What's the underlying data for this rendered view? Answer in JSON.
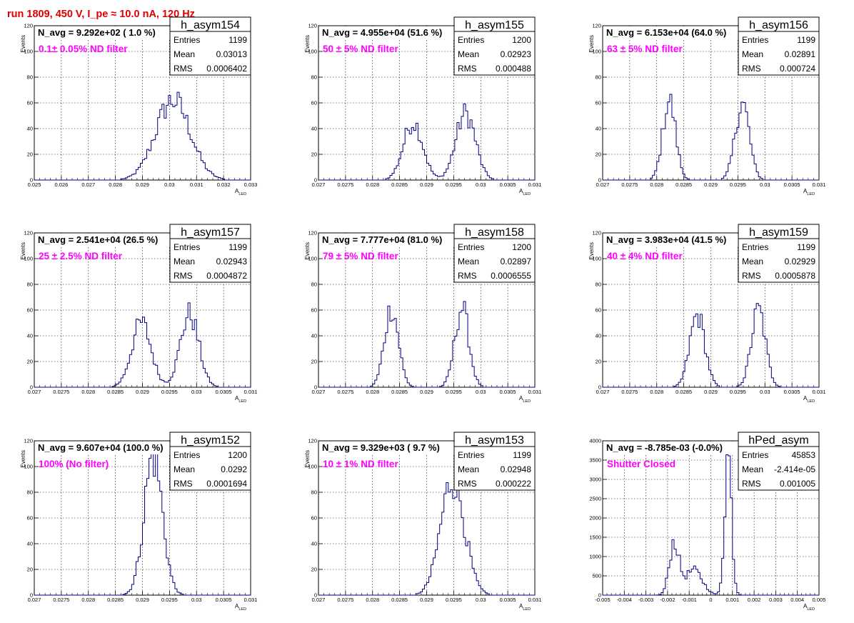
{
  "page": {
    "title": "run 1809,   450 V, I_pe ≈ 10.0 nA, 120 Hz",
    "colors": {
      "histogram": "#000080",
      "title": "#e00000",
      "annotation": "#ff00ff",
      "grid": "#000000"
    }
  },
  "chart_data": [
    {
      "type": "histogram",
      "name": "h_asym154",
      "navg": "N_avg = 9.292e+02 ( 1.0 %)",
      "filter": "0.1± 0.05% ND filter",
      "stats": [
        {
          "label": "Entries",
          "value": "1199"
        },
        {
          "label": "Mean",
          "value": "0.03013"
        },
        {
          "label": "RMS",
          "value": "0.0006402"
        }
      ],
      "xlabel": "A",
      "xlabel_sub": "LED",
      "ylabel": "Events",
      "xlim": [
        0.025,
        0.033
      ],
      "ylim": [
        0,
        120
      ],
      "xticks": [
        "0.025",
        "0.026",
        "0.027",
        "0.028",
        "0.029",
        "0.03",
        "0.031",
        "0.032",
        "0.033"
      ],
      "yticks": [
        "0",
        "20",
        "40",
        "60",
        "80",
        "100",
        "120"
      ],
      "peaks": [
        {
          "mean": 0.03013,
          "sigma": 0.00064,
          "height": 62
        }
      ]
    },
    {
      "type": "histogram",
      "name": "h_asym155",
      "navg": "N_avg = 4.955e+04 (51.6 %)",
      "filter": "50 ± 5% ND filter",
      "stats": [
        {
          "label": "Entries",
          "value": "1200"
        },
        {
          "label": "Mean",
          "value": "0.02923"
        },
        {
          "label": "RMS",
          "value": "0.000488"
        }
      ],
      "xlabel": "A",
      "xlabel_sub": "LED",
      "ylabel": "Events",
      "xlim": [
        0.027,
        0.031
      ],
      "ylim": [
        0,
        120
      ],
      "xticks": [
        "0.027",
        "0.0275",
        "0.028",
        "0.0285",
        "0.029",
        "0.0295",
        "0.03",
        "0.0305",
        "0.031"
      ],
      "yticks": [
        "0",
        "20",
        "40",
        "60",
        "80",
        "100",
        "120"
      ],
      "peaks": [
        {
          "mean": 0.02875,
          "sigma": 0.00018,
          "height": 45
        },
        {
          "mean": 0.02972,
          "sigma": 0.00018,
          "height": 52
        }
      ]
    },
    {
      "type": "histogram",
      "name": "h_asym156",
      "navg": "N_avg = 6.153e+04 (64.0 %)",
      "filter": "63 ± 5% ND filter",
      "stats": [
        {
          "label": "Entries",
          "value": "1199"
        },
        {
          "label": "Mean",
          "value": "0.02891"
        },
        {
          "label": "RMS",
          "value": "0.000724"
        }
      ],
      "xlabel": "A",
      "xlabel_sub": "LED",
      "ylabel": "Events",
      "xlim": [
        0.027,
        0.031
      ],
      "ylim": [
        0,
        120
      ],
      "xticks": [
        "0.027",
        "0.0275",
        "0.028",
        "0.0285",
        "0.029",
        "0.0295",
        "0.03",
        "0.0305",
        "0.031"
      ],
      "yticks": [
        "0",
        "20",
        "40",
        "60",
        "80",
        "100",
        "120"
      ],
      "peaks": [
        {
          "mean": 0.02823,
          "sigma": 0.00012,
          "height": 62
        },
        {
          "mean": 0.02958,
          "sigma": 0.00013,
          "height": 60
        }
      ]
    },
    {
      "type": "histogram",
      "name": "h_asym157",
      "navg": "N_avg = 2.541e+04 (26.5 %)",
      "filter": "25 ± 2.5% ND filter",
      "stats": [
        {
          "label": "Entries",
          "value": "1199"
        },
        {
          "label": "Mean",
          "value": "0.02943"
        },
        {
          "label": "RMS",
          "value": "0.0004872"
        }
      ],
      "xlabel": "A",
      "xlabel_sub": "LED",
      "ylabel": "Events",
      "xlim": [
        0.027,
        0.031
      ],
      "ylim": [
        0,
        120
      ],
      "xticks": [
        "0.027",
        "0.0275",
        "0.028",
        "0.0285",
        "0.029",
        "0.0295",
        "0.03",
        "0.0305",
        "0.031"
      ],
      "yticks": [
        "0",
        "20",
        "40",
        "60",
        "80",
        "100",
        "120"
      ],
      "peaks": [
        {
          "mean": 0.02898,
          "sigma": 0.00018,
          "height": 50
        },
        {
          "mean": 0.02987,
          "sigma": 0.00017,
          "height": 57
        }
      ]
    },
    {
      "type": "histogram",
      "name": "h_asym158",
      "navg": "N_avg = 7.777e+04 (81.0 %)",
      "filter": "79 ± 5% ND filter",
      "stats": [
        {
          "label": "Entries",
          "value": "1200"
        },
        {
          "label": "Mean",
          "value": "0.02897"
        },
        {
          "label": "RMS",
          "value": "0.0006555"
        }
      ],
      "xlabel": "A",
      "xlabel_sub": "LED",
      "ylabel": "Events",
      "xlim": [
        0.027,
        0.031
      ],
      "ylim": [
        0,
        120
      ],
      "xticks": [
        "0.027",
        "0.0275",
        "0.028",
        "0.0285",
        "0.029",
        "0.0295",
        "0.03",
        "0.0305",
        "0.031"
      ],
      "yticks": [
        "0",
        "20",
        "40",
        "60",
        "80",
        "100",
        "120"
      ],
      "peaks": [
        {
          "mean": 0.02835,
          "sigma": 0.00013,
          "height": 62
        },
        {
          "mean": 0.02965,
          "sigma": 0.00013,
          "height": 62
        }
      ]
    },
    {
      "type": "histogram",
      "name": "h_asym159",
      "navg": "N_avg = 3.983e+04 (41.5 %)",
      "filter": "40 ± 4% ND filter",
      "stats": [
        {
          "label": "Entries",
          "value": "1199"
        },
        {
          "label": "Mean",
          "value": "0.02929"
        },
        {
          "label": "RMS",
          "value": "0.0005878"
        }
      ],
      "xlabel": "A",
      "xlabel_sub": "LED",
      "ylabel": "Events",
      "xlim": [
        0.027,
        0.031
      ],
      "ylim": [
        0,
        120
      ],
      "xticks": [
        "0.027",
        "0.0275",
        "0.028",
        "0.0285",
        "0.029",
        "0.0295",
        "0.03",
        "0.0305",
        "0.031"
      ],
      "yticks": [
        "0",
        "20",
        "40",
        "60",
        "80",
        "100",
        "120"
      ],
      "peaks": [
        {
          "mean": 0.02875,
          "sigma": 0.00014,
          "height": 56
        },
        {
          "mean": 0.02988,
          "sigma": 0.00013,
          "height": 60
        }
      ]
    },
    {
      "type": "histogram",
      "name": "h_asym152",
      "navg": "N_avg = 9.607e+04 (100.0 %)",
      "filter": "100% (No filter)",
      "stats": [
        {
          "label": "Entries",
          "value": "1200"
        },
        {
          "label": "Mean",
          "value": "0.0292"
        },
        {
          "label": "RMS",
          "value": "0.0001694"
        }
      ],
      "xlabel": "A",
      "xlabel_sub": "LED",
      "ylabel": "Events",
      "xlim": [
        0.027,
        0.031
      ],
      "ylim": [
        0,
        120
      ],
      "xticks": [
        "0.027",
        "0.0275",
        "0.028",
        "0.0285",
        "0.029",
        "0.0295",
        "0.03",
        "0.0305",
        "0.031"
      ],
      "yticks": [
        "0",
        "20",
        "40",
        "60",
        "80",
        "100",
        "120"
      ],
      "peaks": [
        {
          "mean": 0.0292,
          "sigma": 0.00017,
          "height": 108
        }
      ]
    },
    {
      "type": "histogram",
      "name": "h_asym153",
      "navg": "N_avg = 9.329e+03 ( 9.7 %)",
      "filter": "10 ± 1% ND filter",
      "stats": [
        {
          "label": "Entries",
          "value": "1199"
        },
        {
          "label": "Mean",
          "value": "0.02948"
        },
        {
          "label": "RMS",
          "value": "0.000222"
        }
      ],
      "xlabel": "A",
      "xlabel_sub": "LED",
      "ylabel": "Events",
      "xlim": [
        0.027,
        0.031
      ],
      "ylim": [
        0,
        120
      ],
      "xticks": [
        "0.027",
        "0.0275",
        "0.028",
        "0.0285",
        "0.029",
        "0.0295",
        "0.03",
        "0.0305",
        "0.031"
      ],
      "yticks": [
        "0",
        "20",
        "40",
        "60",
        "80",
        "100",
        "120"
      ],
      "peaks": [
        {
          "mean": 0.02948,
          "sigma": 0.00022,
          "height": 90
        }
      ]
    },
    {
      "type": "histogram",
      "name": "hPed_asym",
      "navg": "N_avg = -8.785e-03 (-0.0%)",
      "filter": "Shutter Closed",
      "stats": [
        {
          "label": "Entries",
          "value": "45853"
        },
        {
          "label": "Mean",
          "value": "-2.414e-05"
        },
        {
          "label": "RMS",
          "value": "0.001005"
        }
      ],
      "xlabel": "A",
      "xlabel_sub": "LED",
      "ylabel": "",
      "xlim": [
        -0.005,
        0.005
      ],
      "ylim": [
        0,
        4000
      ],
      "xticks": [
        "-0.005",
        "-0.004",
        "-0.003",
        "-0.002",
        "-0.001",
        "0",
        "0.001",
        "0.002",
        "0.003",
        "0.004",
        "0.005"
      ],
      "yticks": [
        "0",
        "500",
        "1000",
        "1500",
        "2000",
        "2500",
        "3000",
        "3500",
        "4000"
      ],
      "peaks": [
        {
          "mean": -0.0017,
          "sigma": 0.00022,
          "height": 1350
        },
        {
          "mean": -0.0008,
          "sigma": 0.0004,
          "height": 650
        },
        {
          "mean": 0.0008,
          "sigma": 0.00016,
          "height": 3700
        }
      ]
    }
  ]
}
